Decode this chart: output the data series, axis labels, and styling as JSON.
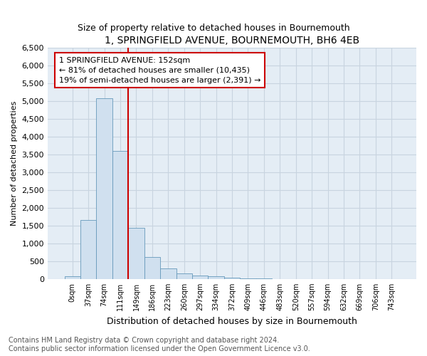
{
  "title": "1, SPRINGFIELD AVENUE, BOURNEMOUTH, BH6 4EB",
  "subtitle": "Size of property relative to detached houses in Bournemouth",
  "xlabel": "Distribution of detached houses by size in Bournemouth",
  "ylabel": "Number of detached properties",
  "bar_labels": [
    "0sqm",
    "37sqm",
    "74sqm",
    "111sqm",
    "149sqm",
    "186sqm",
    "223sqm",
    "260sqm",
    "297sqm",
    "334sqm",
    "372sqm",
    "409sqm",
    "446sqm",
    "483sqm",
    "520sqm",
    "557sqm",
    "594sqm",
    "632sqm",
    "669sqm",
    "706sqm",
    "743sqm"
  ],
  "bar_values": [
    75,
    1650,
    5075,
    3600,
    1430,
    620,
    300,
    150,
    100,
    75,
    30,
    20,
    10,
    0,
    0,
    0,
    0,
    0,
    0,
    0,
    0
  ],
  "bar_color": "#d0e0ef",
  "bar_edge_color": "#6699bb",
  "vline_x_index": 4,
  "vline_color": "#cc0000",
  "annotation_text": "1 SPRINGFIELD AVENUE: 152sqm\n← 81% of detached houses are smaller (10,435)\n19% of semi-detached houses are larger (2,391) →",
  "annotation_box_edge_color": "#cc0000",
  "ylim": [
    0,
    6500
  ],
  "yticks": [
    0,
    500,
    1000,
    1500,
    2000,
    2500,
    3000,
    3500,
    4000,
    4500,
    5000,
    5500,
    6000,
    6500
  ],
  "grid_color": "#c8d4e0",
  "background_color": "#e4edf5",
  "footer_text": "Contains HM Land Registry data © Crown copyright and database right 2024.\nContains public sector information licensed under the Open Government Licence v3.0.",
  "fig_width": 6.0,
  "fig_height": 5.0,
  "title_fontsize": 10,
  "subtitle_fontsize": 9,
  "ylabel_fontsize": 8,
  "xlabel_fontsize": 9,
  "tick_fontsize": 8,
  "xtick_fontsize": 7,
  "footer_fontsize": 7
}
